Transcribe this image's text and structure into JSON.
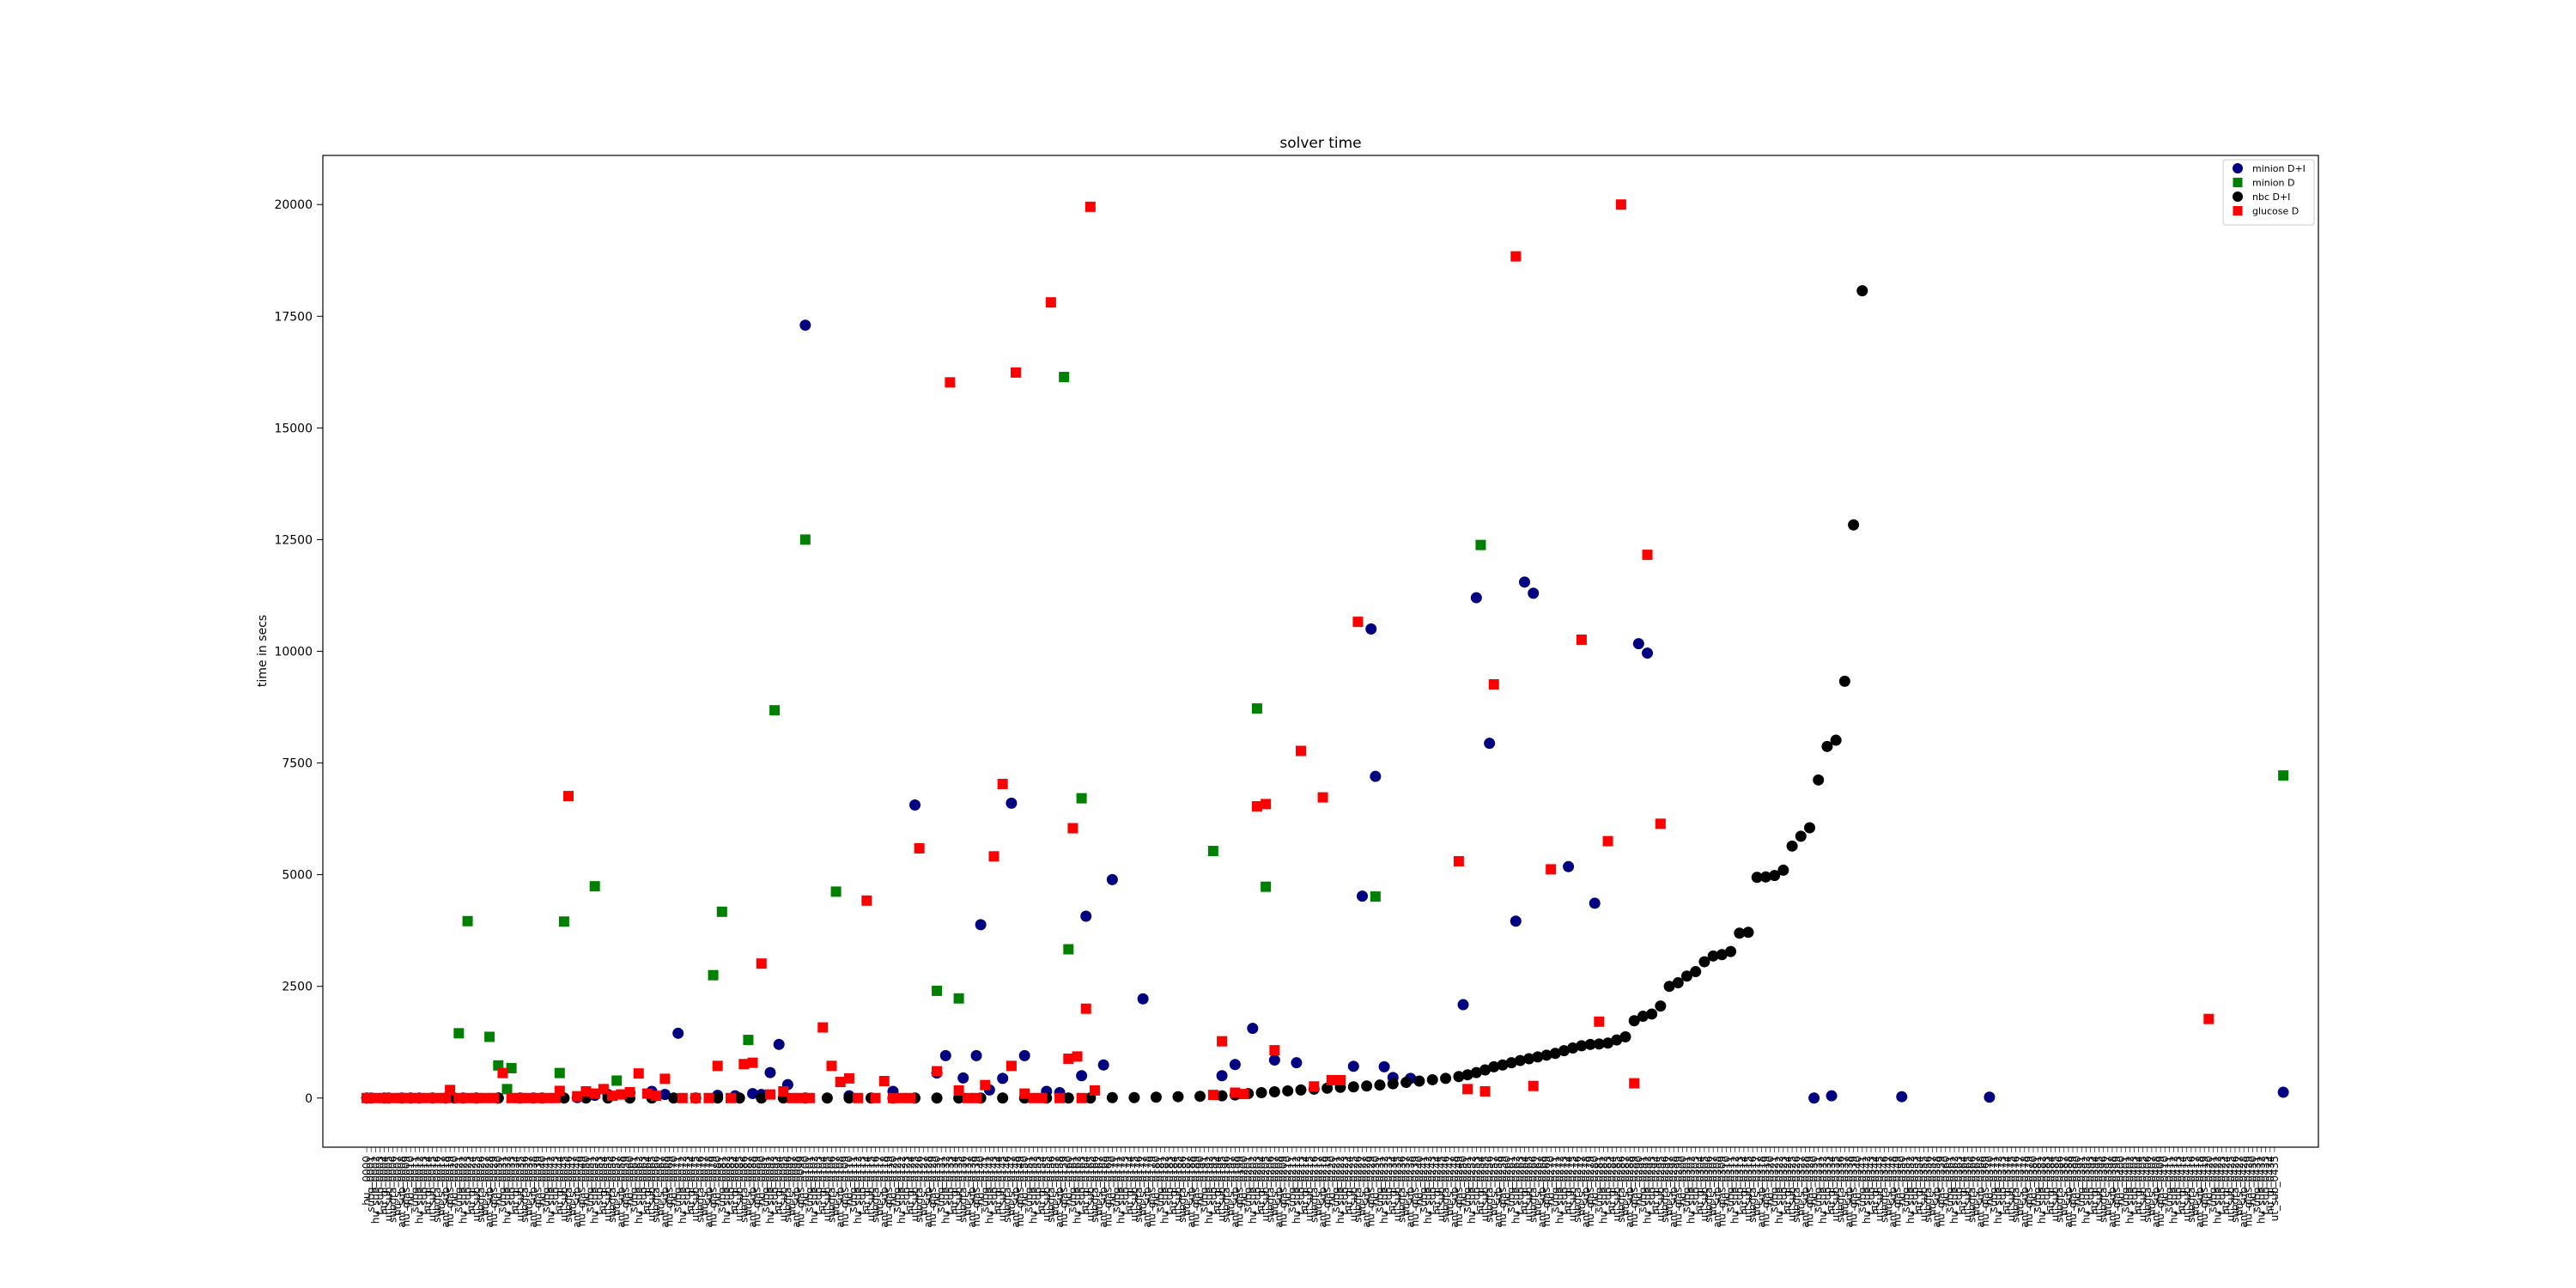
{
  "chart_data": {
    "type": "scatter",
    "title": "solver time",
    "xlabel": "",
    "ylabel": "time in secs",
    "ylim": [
      -1100,
      21100
    ],
    "xlim": [
      -10,
      445
    ],
    "yticks": [
      0,
      2500,
      5000,
      7500,
      10000,
      12500,
      15000,
      17500,
      20000
    ],
    "ytick_labels": [
      "0",
      "2500",
      "5000",
      "7500",
      "10000",
      "12500",
      "15000",
      "17500",
      "20000"
    ],
    "grid": false,
    "legend_position": "top-right",
    "x_category_count": 436,
    "x_label_stems": [
      "hu_",
      "subg",
      "hu_sub",
      "t_sub",
      "hu_gl",
      "ut_sub",
      "subgra",
      "hu_s_",
      "ant_sub",
      "hu_glas"
    ],
    "series": [
      {
        "name": "minion D+I",
        "marker": "circle",
        "color": "#000080",
        "points": [
          [
            1,
            0
          ],
          [
            4,
            0
          ],
          [
            8,
            0
          ],
          [
            12,
            0
          ],
          [
            18,
            0
          ],
          [
            22,
            0
          ],
          [
            30,
            0
          ],
          [
            38,
            0
          ],
          [
            48,
            10
          ],
          [
            52,
            60
          ],
          [
            55,
            80
          ],
          [
            60,
            120
          ],
          [
            65,
            150
          ],
          [
            68,
            80
          ],
          [
            71,
            1450
          ],
          [
            80,
            60
          ],
          [
            84,
            50
          ],
          [
            88,
            100
          ],
          [
            90,
            80
          ],
          [
            92,
            570
          ],
          [
            94,
            1200
          ],
          [
            96,
            300
          ],
          [
            100,
            17300
          ],
          [
            110,
            50
          ],
          [
            120,
            150
          ],
          [
            125,
            6560
          ],
          [
            130,
            560
          ],
          [
            132,
            950
          ],
          [
            136,
            450
          ],
          [
            139,
            950
          ],
          [
            140,
            3880
          ],
          [
            142,
            180
          ],
          [
            145,
            440
          ],
          [
            147,
            6600
          ],
          [
            150,
            950
          ],
          [
            155,
            150
          ],
          [
            158,
            120
          ],
          [
            163,
            500
          ],
          [
            164,
            4070
          ],
          [
            168,
            740
          ],
          [
            170,
            4890
          ],
          [
            177,
            2220
          ],
          [
            195,
            500
          ],
          [
            198,
            750
          ],
          [
            202,
            1560
          ],
          [
            207,
            850
          ],
          [
            212,
            790
          ],
          [
            225,
            710
          ],
          [
            227,
            4520
          ],
          [
            229,
            10500
          ],
          [
            230,
            7200
          ],
          [
            232,
            700
          ],
          [
            234,
            460
          ],
          [
            238,
            440
          ],
          [
            250,
            2090
          ],
          [
            253,
            11200
          ],
          [
            256,
            7940
          ],
          [
            262,
            3960
          ],
          [
            264,
            11550
          ],
          [
            266,
            11300
          ],
          [
            274,
            5180
          ],
          [
            280,
            4360
          ],
          [
            290,
            10170
          ],
          [
            292,
            9960
          ],
          [
            330,
            0
          ],
          [
            334,
            50
          ],
          [
            350,
            30
          ],
          [
            370,
            20
          ],
          [
            437,
            130
          ]
        ]
      },
      {
        "name": "minion D",
        "marker": "square",
        "color": "#008000",
        "points": [
          [
            21,
            1450
          ],
          [
            23,
            3960
          ],
          [
            28,
            1370
          ],
          [
            30,
            730
          ],
          [
            32,
            200
          ],
          [
            33,
            670
          ],
          [
            44,
            560
          ],
          [
            45,
            3950
          ],
          [
            52,
            4740
          ],
          [
            57,
            390
          ],
          [
            79,
            2750
          ],
          [
            81,
            4170
          ],
          [
            87,
            1300
          ],
          [
            93,
            8680
          ],
          [
            100,
            12500
          ],
          [
            107,
            4620
          ],
          [
            130,
            2400
          ],
          [
            135,
            2230
          ],
          [
            159,
            16140
          ],
          [
            160,
            3330
          ],
          [
            163,
            6710
          ],
          [
            193,
            5530
          ],
          [
            203,
            8720
          ],
          [
            205,
            4730
          ],
          [
            230,
            4510
          ],
          [
            254,
            12380
          ],
          [
            437,
            7220
          ]
        ]
      },
      {
        "name": "nbc D+I",
        "marker": "circle",
        "color": "#000000",
        "points": [
          [
            0,
            0
          ],
          [
            5,
            0
          ],
          [
            10,
            0
          ],
          [
            15,
            0
          ],
          [
            20,
            0
          ],
          [
            25,
            0
          ],
          [
            30,
            0
          ],
          [
            35,
            0
          ],
          [
            40,
            0
          ],
          [
            45,
            0
          ],
          [
            50,
            0
          ],
          [
            55,
            0
          ],
          [
            60,
            0
          ],
          [
            65,
            0
          ],
          [
            70,
            0
          ],
          [
            75,
            0
          ],
          [
            80,
            0
          ],
          [
            85,
            0
          ],
          [
            90,
            0
          ],
          [
            95,
            0
          ],
          [
            100,
            0
          ],
          [
            105,
            0
          ],
          [
            110,
            0
          ],
          [
            115,
            0
          ],
          [
            120,
            0
          ],
          [
            125,
            0
          ],
          [
            130,
            0
          ],
          [
            135,
            0
          ],
          [
            140,
            0
          ],
          [
            145,
            0
          ],
          [
            150,
            0
          ],
          [
            155,
            0
          ],
          [
            160,
            0
          ],
          [
            165,
            0
          ],
          [
            170,
            10
          ],
          [
            175,
            10
          ],
          [
            180,
            20
          ],
          [
            185,
            30
          ],
          [
            190,
            40
          ],
          [
            195,
            50
          ],
          [
            198,
            70
          ],
          [
            201,
            100
          ],
          [
            204,
            120
          ],
          [
            207,
            140
          ],
          [
            210,
            160
          ],
          [
            213,
            180
          ],
          [
            216,
            200
          ],
          [
            219,
            220
          ],
          [
            222,
            240
          ],
          [
            225,
            250
          ],
          [
            228,
            270
          ],
          [
            231,
            290
          ],
          [
            234,
            320
          ],
          [
            237,
            350
          ],
          [
            240,
            380
          ],
          [
            243,
            410
          ],
          [
            246,
            440
          ],
          [
            249,
            480
          ],
          [
            251,
            520
          ],
          [
            253,
            570
          ],
          [
            255,
            630
          ],
          [
            257,
            700
          ],
          [
            259,
            740
          ],
          [
            261,
            790
          ],
          [
            263,
            840
          ],
          [
            265,
            880
          ],
          [
            267,
            920
          ],
          [
            269,
            960
          ],
          [
            271,
            1000
          ],
          [
            273,
            1060
          ],
          [
            275,
            1120
          ],
          [
            277,
            1170
          ],
          [
            279,
            1200
          ],
          [
            281,
            1210
          ],
          [
            283,
            1230
          ],
          [
            285,
            1300
          ],
          [
            287,
            1370
          ],
          [
            289,
            1730
          ],
          [
            291,
            1830
          ],
          [
            293,
            1880
          ],
          [
            295,
            2060
          ],
          [
            297,
            2500
          ],
          [
            299,
            2580
          ],
          [
            301,
            2730
          ],
          [
            303,
            2830
          ],
          [
            305,
            3050
          ],
          [
            307,
            3180
          ],
          [
            309,
            3210
          ],
          [
            311,
            3280
          ],
          [
            313,
            3690
          ],
          [
            315,
            3710
          ],
          [
            317,
            4940
          ],
          [
            319,
            4950
          ],
          [
            321,
            4980
          ],
          [
            323,
            5100
          ],
          [
            325,
            5640
          ],
          [
            327,
            5860
          ],
          [
            329,
            6050
          ],
          [
            331,
            7120
          ],
          [
            333,
            7870
          ],
          [
            335,
            8010
          ],
          [
            337,
            9330
          ],
          [
            339,
            12830
          ],
          [
            341,
            18070
          ]
        ]
      },
      {
        "name": "glucose D",
        "marker": "square",
        "color": "#ff0000",
        "points": [
          [
            0,
            0
          ],
          [
            2,
            0
          ],
          [
            4,
            0
          ],
          [
            6,
            0
          ],
          [
            8,
            0
          ],
          [
            10,
            0
          ],
          [
            12,
            0
          ],
          [
            14,
            0
          ],
          [
            16,
            0
          ],
          [
            18,
            0
          ],
          [
            19,
            180
          ],
          [
            21,
            0
          ],
          [
            23,
            0
          ],
          [
            25,
            0
          ],
          [
            27,
            0
          ],
          [
            29,
            0
          ],
          [
            31,
            560
          ],
          [
            33,
            0
          ],
          [
            35,
            0
          ],
          [
            37,
            0
          ],
          [
            39,
            0
          ],
          [
            41,
            0
          ],
          [
            43,
            0
          ],
          [
            44,
            160
          ],
          [
            46,
            6760
          ],
          [
            48,
            40
          ],
          [
            50,
            150
          ],
          [
            52,
            100
          ],
          [
            54,
            200
          ],
          [
            56,
            50
          ],
          [
            58,
            80
          ],
          [
            60,
            130
          ],
          [
            62,
            550
          ],
          [
            64,
            100
          ],
          [
            66,
            50
          ],
          [
            68,
            430
          ],
          [
            72,
            0
          ],
          [
            75,
            0
          ],
          [
            78,
            0
          ],
          [
            80,
            720
          ],
          [
            83,
            0
          ],
          [
            86,
            760
          ],
          [
            88,
            790
          ],
          [
            90,
            3010
          ],
          [
            92,
            80
          ],
          [
            95,
            150
          ],
          [
            97,
            0
          ],
          [
            99,
            0
          ],
          [
            101,
            0
          ],
          [
            104,
            1580
          ],
          [
            106,
            720
          ],
          [
            108,
            360
          ],
          [
            110,
            440
          ],
          [
            112,
            0
          ],
          [
            114,
            4420
          ],
          [
            116,
            0
          ],
          [
            118,
            380
          ],
          [
            120,
            0
          ],
          [
            122,
            0
          ],
          [
            124,
            0
          ],
          [
            126,
            5590
          ],
          [
            130,
            600
          ],
          [
            133,
            16020
          ],
          [
            135,
            170
          ],
          [
            137,
            0
          ],
          [
            139,
            0
          ],
          [
            141,
            290
          ],
          [
            143,
            5410
          ],
          [
            145,
            7030
          ],
          [
            147,
            720
          ],
          [
            148,
            16240
          ],
          [
            150,
            100
          ],
          [
            152,
            0
          ],
          [
            154,
            0
          ],
          [
            156,
            17810
          ],
          [
            158,
            0
          ],
          [
            160,
            880
          ],
          [
            161,
            6040
          ],
          [
            162,
            930
          ],
          [
            163,
            0
          ],
          [
            164,
            2000
          ],
          [
            165,
            19950
          ],
          [
            166,
            170
          ],
          [
            193,
            70
          ],
          [
            195,
            1270
          ],
          [
            198,
            120
          ],
          [
            200,
            90
          ],
          [
            203,
            6530
          ],
          [
            205,
            6580
          ],
          [
            207,
            1070
          ],
          [
            213,
            7770
          ],
          [
            216,
            260
          ],
          [
            218,
            6730
          ],
          [
            220,
            400
          ],
          [
            222,
            400
          ],
          [
            226,
            10660
          ],
          [
            249,
            5300
          ],
          [
            251,
            200
          ],
          [
            255,
            150
          ],
          [
            257,
            9260
          ],
          [
            262,
            18840
          ],
          [
            266,
            270
          ],
          [
            270,
            5120
          ],
          [
            277,
            10260
          ],
          [
            281,
            1710
          ],
          [
            283,
            5750
          ],
          [
            286,
            20000
          ],
          [
            289,
            330
          ],
          [
            292,
            12160
          ],
          [
            295,
            6140
          ],
          [
            420,
            1770
          ]
        ]
      }
    ]
  }
}
